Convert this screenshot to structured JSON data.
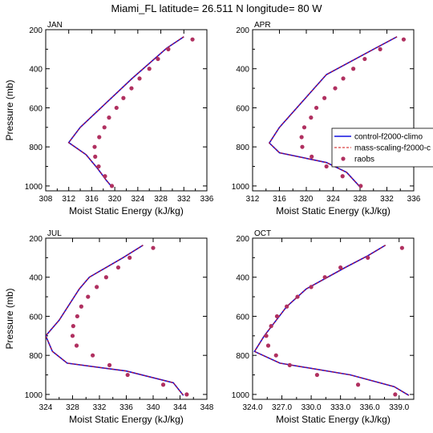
{
  "title": "Miami_FL  latitude= 26.511 N longitude= 80 W",
  "legend": {
    "position": "right-middle",
    "entries": [
      {
        "label": "control-f2000-climo",
        "color": "#1010e0",
        "style": "solid"
      },
      {
        "label": "mass-scaling-f2000-c",
        "color": "#d01010",
        "style": "dashed"
      },
      {
        "label": "raobs",
        "color": "#b03060",
        "style": "dot"
      }
    ]
  },
  "chart_data": [
    {
      "type": "line",
      "panel": "JAN",
      "xlabel": "Moist Static Energy (kJ/kg)",
      "ylabel": "Pressure (mb)",
      "xlim": [
        308,
        336
      ],
      "ylim": [
        200,
        1025
      ],
      "y_inverted": true,
      "xticks": [
        "308",
        "312",
        "316",
        "320",
        "324",
        "328",
        "332",
        "336"
      ],
      "yticks": [
        "200",
        "400",
        "600",
        "800",
        "1000"
      ],
      "series": [
        {
          "name": "control-f2000-climo",
          "points": [
            [
              332,
              236
            ],
            [
              329,
              295
            ],
            [
              323,
              450
            ],
            [
              314,
              700
            ],
            [
              312,
              778
            ],
            [
              315,
              840
            ],
            [
              317,
              910
            ],
            [
              318.5,
              970
            ],
            [
              319.5,
              1005
            ]
          ]
        },
        {
          "name": "mass-scaling-f2000-c",
          "points": [
            [
              332,
              236
            ],
            [
              329,
              295
            ],
            [
              323,
              450
            ],
            [
              314,
              700
            ],
            [
              312,
              778
            ],
            [
              315,
              840
            ],
            [
              317,
              910
            ],
            [
              318.5,
              970
            ],
            [
              319.5,
              1005
            ]
          ]
        },
        {
          "name": "raobs",
          "points": [
            [
              333.5,
              250
            ],
            [
              329.3,
              300
            ],
            [
              327.5,
              350
            ],
            [
              326,
              400
            ],
            [
              324.3,
              450
            ],
            [
              322.9,
              500
            ],
            [
              321.5,
              550
            ],
            [
              320.3,
              600
            ],
            [
              319,
              650
            ],
            [
              318.2,
              700
            ],
            [
              317.3,
              750
            ],
            [
              316.5,
              800
            ],
            [
              316.6,
              850
            ],
            [
              317.2,
              900
            ],
            [
              318.3,
              950
            ],
            [
              319.5,
              1000
            ]
          ]
        }
      ]
    },
    {
      "type": "line",
      "panel": "APR",
      "xlabel": "Moist Static Energy (kJ/kg)",
      "ylabel": "",
      "xlim": [
        312,
        336
      ],
      "ylim": [
        200,
        1025
      ],
      "y_inverted": true,
      "xticks": [
        "312",
        "316",
        "320",
        "324",
        "328",
        "332",
        "336"
      ],
      "yticks": [
        "200",
        "400",
        "600",
        "800",
        "1000"
      ],
      "series": [
        {
          "name": "control-f2000-climo",
          "points": [
            [
              333.5,
              236
            ],
            [
              330,
              300
            ],
            [
              323,
              430
            ],
            [
              316,
              700
            ],
            [
              314.5,
              780
            ],
            [
              316,
              830
            ],
            [
              323,
              880
            ],
            [
              326,
              930
            ],
            [
              328,
              1005
            ]
          ]
        },
        {
          "name": "mass-scaling-f2000-c",
          "points": [
            [
              333.5,
              236
            ],
            [
              330,
              300
            ],
            [
              323,
              430
            ],
            [
              316,
              700
            ],
            [
              314.5,
              780
            ],
            [
              316,
              830
            ],
            [
              323,
              880
            ],
            [
              326,
              930
            ],
            [
              328,
              1005
            ]
          ]
        },
        {
          "name": "raobs",
          "points": [
            [
              334.5,
              250
            ],
            [
              331,
              300
            ],
            [
              328.7,
              350
            ],
            [
              327,
              400
            ],
            [
              325.5,
              450
            ],
            [
              324.3,
              500
            ],
            [
              322.7,
              550
            ],
            [
              321.5,
              600
            ],
            [
              320.7,
              650
            ],
            [
              319.7,
              700
            ],
            [
              319.3,
              750
            ],
            [
              319.4,
              800
            ],
            [
              320.8,
              850
            ],
            [
              323,
              900
            ],
            [
              325.4,
              950
            ],
            [
              328.1,
              1000
            ]
          ]
        }
      ]
    },
    {
      "type": "line",
      "panel": "JUL",
      "xlabel": "Moist Static Energy (kJ/kg)",
      "ylabel": "Pressure (mb)",
      "xlim": [
        324,
        348
      ],
      "ylim": [
        200,
        1025
      ],
      "y_inverted": true,
      "xticks": [
        "324",
        "328",
        "332",
        "336",
        "340",
        "344",
        "348"
      ],
      "yticks": [
        "200",
        "400",
        "600",
        "800",
        "1000"
      ],
      "series": [
        {
          "name": "control-f2000-climo",
          "points": [
            [
              338.5,
              236
            ],
            [
              335.5,
              300
            ],
            [
              330.5,
              400
            ],
            [
              329,
              460
            ],
            [
              326,
              620
            ],
            [
              324,
              700
            ],
            [
              325,
              780
            ],
            [
              327.2,
              840
            ],
            [
              336,
              880
            ],
            [
              343,
              940
            ],
            [
              344.5,
              1005
            ]
          ]
        },
        {
          "name": "mass-scaling-f2000-c",
          "points": [
            [
              338.5,
              236
            ],
            [
              335.5,
              300
            ],
            [
              330.5,
              400
            ],
            [
              329,
              460
            ],
            [
              326,
              620
            ],
            [
              324,
              700
            ],
            [
              325,
              780
            ],
            [
              327.2,
              840
            ],
            [
              336,
              880
            ],
            [
              343,
              940
            ],
            [
              344.5,
              1005
            ]
          ]
        },
        {
          "name": "raobs",
          "points": [
            [
              340,
              250
            ],
            [
              336.5,
              300
            ],
            [
              334.8,
              350
            ],
            [
              333,
              400
            ],
            [
              331.6,
              450
            ],
            [
              330.3,
              500
            ],
            [
              329.3,
              550
            ],
            [
              328.7,
              600
            ],
            [
              328.1,
              650
            ],
            [
              328,
              700
            ],
            [
              328.6,
              750
            ],
            [
              331,
              800
            ],
            [
              333.5,
              850
            ],
            [
              336.2,
              900
            ],
            [
              341.5,
              950
            ],
            [
              345,
              1000
            ]
          ]
        }
      ]
    },
    {
      "type": "line",
      "panel": "OCT",
      "xlabel": "Moist Static Energy (kJ/kg)",
      "ylabel": "",
      "xlim": [
        324,
        340.5
      ],
      "ylim": [
        200,
        1025
      ],
      "y_inverted": true,
      "xticks": [
        "324.0",
        "327.0",
        "330.0",
        "333.0",
        "336.0",
        "339.0"
      ],
      "yticks": [
        "200",
        "400",
        "600",
        "800",
        "1000"
      ],
      "series": [
        {
          "name": "control-f2000-climo",
          "points": [
            [
              337.6,
              236
            ],
            [
              335.8,
              290
            ],
            [
              333.5,
              350
            ],
            [
              329.5,
              460
            ],
            [
              327.5,
              550
            ],
            [
              325.2,
              700
            ],
            [
              324.2,
              780
            ],
            [
              326.8,
              840
            ],
            [
              334,
              900
            ],
            [
              338.5,
              960
            ],
            [
              340,
              1005
            ]
          ]
        },
        {
          "name": "mass-scaling-f2000-c",
          "points": [
            [
              337.6,
              236
            ],
            [
              335.8,
              290
            ],
            [
              333.5,
              350
            ],
            [
              329.5,
              460
            ],
            [
              327.5,
              550
            ],
            [
              325.2,
              700
            ],
            [
              324.2,
              780
            ],
            [
              326.8,
              840
            ],
            [
              334,
              900
            ],
            [
              338.5,
              960
            ],
            [
              340,
              1005
            ]
          ]
        },
        {
          "name": "raobs",
          "points": [
            [
              339.3,
              250
            ],
            [
              335.8,
              300
            ],
            [
              333,
              350
            ],
            [
              331.4,
              400
            ],
            [
              330,
              450
            ],
            [
              328.6,
              500
            ],
            [
              327.5,
              550
            ],
            [
              326.5,
              600
            ],
            [
              325.9,
              650
            ],
            [
              325.4,
              700
            ],
            [
              325.6,
              750
            ],
            [
              326.4,
              800
            ],
            [
              327.8,
              850
            ],
            [
              330.6,
              900
            ],
            [
              334.8,
              950
            ],
            [
              338.6,
              1000
            ]
          ]
        }
      ]
    }
  ]
}
